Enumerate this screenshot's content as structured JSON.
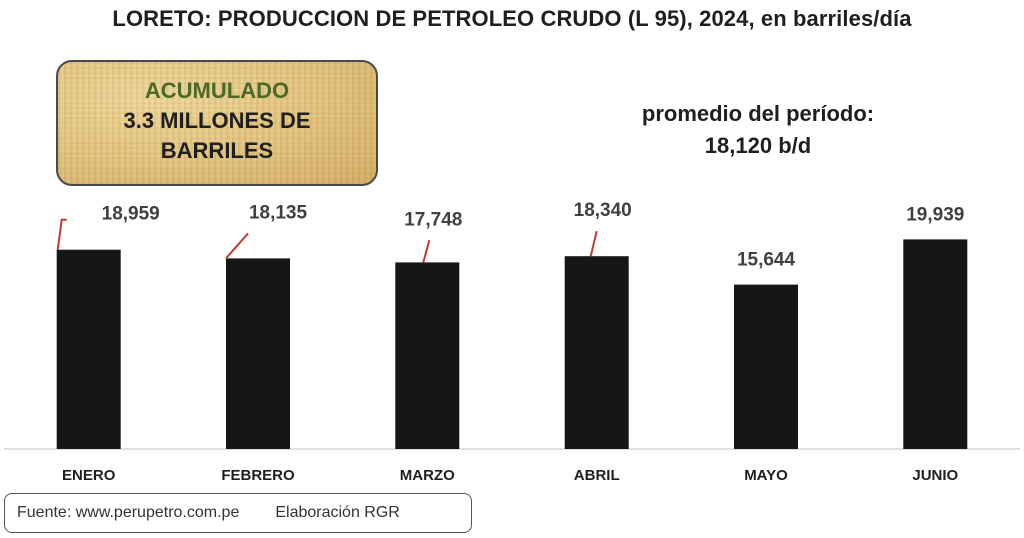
{
  "title": "LORETO: PRODUCCION DE PETROLEO CRUDO (L 95), 2024, en barriles/día",
  "accumulated": {
    "label": "ACUMULADO",
    "line1": "3.3 MILLONES DE",
    "line2": "BARRILES"
  },
  "average": {
    "label": "promedio del período:",
    "value": "18,120 b/d"
  },
  "source": {
    "text": "Fuente: www.perupetro.com.pe",
    "credit": "Elaboración RGR"
  },
  "colors": {
    "bar": "#161616",
    "leader_line": "#c0392b",
    "accumulated_label": "#4b6a2a"
  },
  "chart_data": {
    "type": "bar",
    "categories": [
      "ENERO",
      "FEBRERO",
      "MARZO",
      "ABRIL",
      "MAYO",
      "JUNIO"
    ],
    "values": [
      18959,
      18135,
      17748,
      18340,
      15644,
      19939
    ],
    "value_labels": [
      "18,959",
      "18,135",
      "17,748",
      "18,340",
      "15,644",
      "19,939"
    ],
    "ylim": [
      0,
      21500
    ],
    "grid": false,
    "xlabel": "",
    "ylabel": ""
  }
}
